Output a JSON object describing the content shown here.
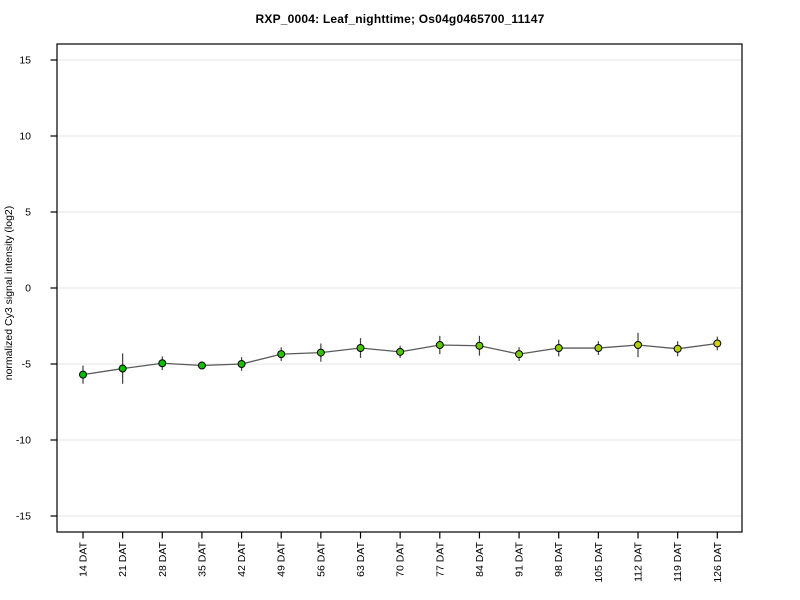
{
  "chart_data": {
    "type": "line",
    "title": "RXP_0004: Leaf_nighttime; Os04g0465700_11147",
    "ylabel": "normalized Cy3 signal intensity (log2)",
    "xlabel": "",
    "categories": [
      "14 DAT",
      "21 DAT",
      "28 DAT",
      "35 DAT",
      "42 DAT",
      "49 DAT",
      "56 DAT",
      "63 DAT",
      "70 DAT",
      "77 DAT",
      "84 DAT",
      "91 DAT",
      "98 DAT",
      "105 DAT",
      "112 DAT",
      "119 DAT",
      "126 DAT"
    ],
    "values": [
      -5.7,
      -5.3,
      -4.95,
      -5.1,
      -5.0,
      -4.35,
      -4.25,
      -3.95,
      -4.2,
      -3.75,
      -3.8,
      -4.35,
      -3.95,
      -3.95,
      -3.75,
      -4.0,
      -3.65
    ],
    "errors": [
      0.6,
      1.0,
      0.45,
      0.25,
      0.45,
      0.45,
      0.6,
      0.65,
      0.4,
      0.6,
      0.65,
      0.45,
      0.55,
      0.45,
      0.8,
      0.5,
      0.45
    ],
    "point_colors": [
      "#00b900",
      "#04bb00",
      "#0bbc00",
      "#14be00",
      "#1ebf00",
      "#29c100",
      "#35c200",
      "#42c400",
      "#50c600",
      "#5ec700",
      "#6dc900",
      "#7cca00",
      "#8ccc00",
      "#9dcd00",
      "#aecf00",
      "#c0d100",
      "#d2d200"
    ],
    "yticks": [
      -15,
      -10,
      -5,
      0,
      5,
      10,
      15
    ],
    "ylim": [
      -16,
      16
    ],
    "grid": "horizontal",
    "legend": "none",
    "marker": "circle",
    "colors": {
      "axis": "#000000",
      "grid": "#e4e4e4",
      "line": "#5a5a5a",
      "error_bar": "#404040",
      "marker_stroke": "#000000",
      "background": "#ffffff"
    }
  }
}
